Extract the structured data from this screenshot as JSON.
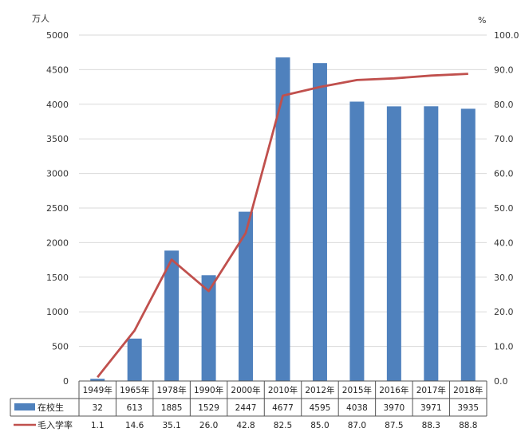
{
  "chart_data": {
    "type": "bar+line",
    "title": "",
    "categories": [
      "1949年",
      "1965年",
      "1978年",
      "1990年",
      "2000年",
      "2010年",
      "2012年",
      "2015年",
      "2016年",
      "2017年",
      "2018年"
    ],
    "series": [
      {
        "name": "在校生",
        "type": "bar",
        "axis": "left",
        "color": "#4f81bd",
        "values": [
          32,
          613,
          1885,
          1529,
          2447,
          4677,
          4595,
          4038,
          3970,
          3971,
          3935
        ],
        "labels": [
          "32",
          "613",
          "1885",
          "1529",
          "2447",
          "4677",
          "4595",
          "4038",
          "3970",
          "3971",
          "3935"
        ]
      },
      {
        "name": "毛入学率",
        "type": "line",
        "axis": "right",
        "color": "#c0504d",
        "values": [
          1.1,
          14.6,
          35.1,
          26.0,
          42.8,
          82.5,
          85.0,
          87.0,
          87.5,
          88.3,
          88.8
        ],
        "labels": [
          "1.1",
          "14.6",
          "35.1",
          "26.0",
          "42.8",
          "82.5",
          "85.0",
          "87.0",
          "87.5",
          "88.3",
          "88.8"
        ]
      }
    ],
    "y_left": {
      "unit": "万人",
      "ylim": [
        0,
        5000
      ],
      "ticks": [
        "0",
        "500",
        "1000",
        "1500",
        "2000",
        "2500",
        "3000",
        "3500",
        "4000",
        "4500",
        "5000"
      ]
    },
    "y_right": {
      "unit": "%",
      "ylim": [
        0,
        100
      ],
      "ticks": [
        "0.0",
        "10.0",
        "20.0",
        "30.0",
        "40.0",
        "50.0",
        "60.0",
        "70.0",
        "80.0",
        "90.0",
        "100.0"
      ]
    },
    "grid": true,
    "data_table": true,
    "legend": "data-table-left"
  }
}
